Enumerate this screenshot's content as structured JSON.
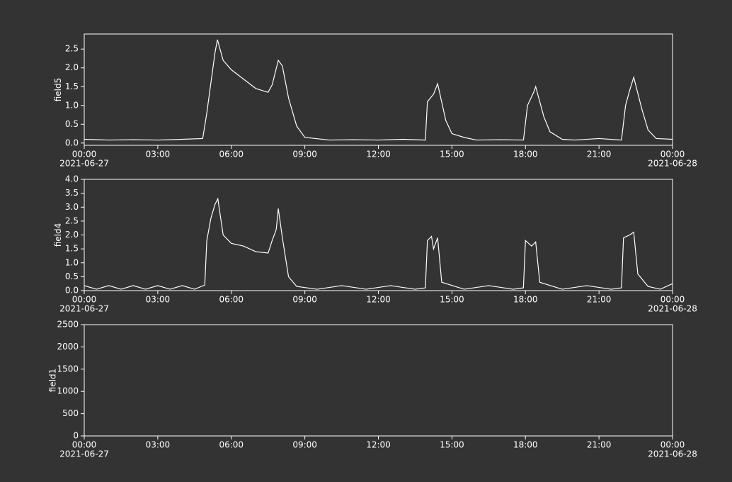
{
  "chart_data": [
    {
      "type": "line",
      "y_label": "field5",
      "x": [
        "2021-06-27 00:00",
        "2021-06-27 01:00",
        "2021-06-27 02:00",
        "2021-06-27 03:00",
        "2021-06-27 04:00",
        "2021-06-27 04:50",
        "2021-06-27 05:00",
        "2021-06-27 05:10",
        "2021-06-27 05:20",
        "2021-06-27 05:26",
        "2021-06-27 05:40",
        "2021-06-27 06:00",
        "2021-06-27 06:30",
        "2021-06-27 07:00",
        "2021-06-27 07:30",
        "2021-06-27 07:40",
        "2021-06-27 07:55",
        "2021-06-27 08:05",
        "2021-06-27 08:20",
        "2021-06-27 08:40",
        "2021-06-27 09:00",
        "2021-06-27 10:00",
        "2021-06-27 11:00",
        "2021-06-27 12:00",
        "2021-06-27 13:00",
        "2021-06-27 13:55",
        "2021-06-27 14:00",
        "2021-06-27 14:15",
        "2021-06-27 14:25",
        "2021-06-27 14:45",
        "2021-06-27 15:00",
        "2021-06-27 15:30",
        "2021-06-27 16:00",
        "2021-06-27 17:00",
        "2021-06-27 17:55",
        "2021-06-27 18:05",
        "2021-06-27 18:20",
        "2021-06-27 18:25",
        "2021-06-27 18:45",
        "2021-06-27 19:00",
        "2021-06-27 19:30",
        "2021-06-27 20:00",
        "2021-06-27 21:00",
        "2021-06-27 21:55",
        "2021-06-27 22:05",
        "2021-06-27 22:15",
        "2021-06-27 22:25",
        "2021-06-27 22:45",
        "2021-06-27 23:00",
        "2021-06-27 23:20",
        "2021-06-28 00:00"
      ],
      "series": [
        {
          "name": "field5",
          "color": "#ffffff",
          "values": [
            0.1,
            0.08,
            0.09,
            0.08,
            0.1,
            0.12,
            0.8,
            1.6,
            2.4,
            2.75,
            2.2,
            1.95,
            1.7,
            1.45,
            1.35,
            1.55,
            2.2,
            2.05,
            1.2,
            0.45,
            0.15,
            0.08,
            0.09,
            0.08,
            0.1,
            0.08,
            1.1,
            1.3,
            1.58,
            0.6,
            0.25,
            0.15,
            0.08,
            0.09,
            0.08,
            1.0,
            1.35,
            1.5,
            0.7,
            0.3,
            0.1,
            0.08,
            0.12,
            0.08,
            1.0,
            1.4,
            1.75,
            0.9,
            0.35,
            0.12,
            0.1
          ]
        }
      ],
      "xlim": [
        "2021-06-27 00:00",
        "2021-06-28 00:00"
      ],
      "xticks": [
        {
          "value": "2021-06-27 00:00",
          "label": "00:00",
          "sublabel": "2021-06-27"
        },
        {
          "value": "2021-06-27 03:00",
          "label": "03:00"
        },
        {
          "value": "2021-06-27 06:00",
          "label": "06:00"
        },
        {
          "value": "2021-06-27 09:00",
          "label": "09:00"
        },
        {
          "value": "2021-06-27 12:00",
          "label": "12:00"
        },
        {
          "value": "2021-06-27 15:00",
          "label": "15:00"
        },
        {
          "value": "2021-06-27 18:00",
          "label": "18:00"
        },
        {
          "value": "2021-06-27 21:00",
          "label": "21:00"
        },
        {
          "value": "2021-06-28 00:00",
          "label": "00:00",
          "sublabel": "2021-06-28"
        }
      ],
      "ylim": [
        -0.06,
        2.9
      ],
      "yticks": [
        {
          "value": 0,
          "label": "0.0"
        },
        0.5,
        {
          "value": 1,
          "label": "1.0"
        },
        1.5,
        {
          "value": 2,
          "label": "2.0"
        },
        2.5
      ]
    },
    {
      "type": "line",
      "y_label": "field4",
      "x": [
        "2021-06-27 00:00",
        "2021-06-27 00:30",
        "2021-06-27 01:00",
        "2021-06-27 01:30",
        "2021-06-27 02:00",
        "2021-06-27 02:30",
        "2021-06-27 03:00",
        "2021-06-27 03:30",
        "2021-06-27 04:00",
        "2021-06-27 04:30",
        "2021-06-27 04:55",
        "2021-06-27 05:00",
        "2021-06-27 05:10",
        "2021-06-27 05:20",
        "2021-06-27 05:27",
        "2021-06-27 05:40",
        "2021-06-27 06:00",
        "2021-06-27 06:30",
        "2021-06-27 07:00",
        "2021-06-27 07:30",
        "2021-06-27 07:40",
        "2021-06-27 07:50",
        "2021-06-27 07:55",
        "2021-06-27 08:05",
        "2021-06-27 08:20",
        "2021-06-27 08:40",
        "2021-06-27 09:30",
        "2021-06-27 10:30",
        "2021-06-27 11:30",
        "2021-06-27 12:30",
        "2021-06-27 13:30",
        "2021-06-27 13:55",
        "2021-06-27 14:00",
        "2021-06-27 14:10",
        "2021-06-27 14:15",
        "2021-06-27 14:25",
        "2021-06-27 14:35",
        "2021-06-27 15:30",
        "2021-06-27 16:30",
        "2021-06-27 17:30",
        "2021-06-27 17:55",
        "2021-06-27 18:00",
        "2021-06-27 18:15",
        "2021-06-27 18:25",
        "2021-06-27 18:35",
        "2021-06-27 19:30",
        "2021-06-27 20:30",
        "2021-06-27 21:30",
        "2021-06-27 21:55",
        "2021-06-27 22:00",
        "2021-06-27 22:15",
        "2021-06-27 22:25",
        "2021-06-27 22:35",
        "2021-06-27 23:00",
        "2021-06-27 23:30",
        "2021-06-28 00:00"
      ],
      "series": [
        {
          "name": "field4",
          "color": "#ffffff",
          "values": [
            0.18,
            0.05,
            0.18,
            0.05,
            0.18,
            0.05,
            0.18,
            0.05,
            0.18,
            0.05,
            0.2,
            1.8,
            2.6,
            3.1,
            3.3,
            2.0,
            1.7,
            1.6,
            1.4,
            1.35,
            1.8,
            2.2,
            2.95,
            1.9,
            0.5,
            0.15,
            0.05,
            0.18,
            0.05,
            0.18,
            0.05,
            0.1,
            1.8,
            1.95,
            1.5,
            1.9,
            0.3,
            0.05,
            0.18,
            0.05,
            0.1,
            1.8,
            1.6,
            1.75,
            0.3,
            0.05,
            0.18,
            0.05,
            0.1,
            1.9,
            2.0,
            2.1,
            0.6,
            0.15,
            0.05,
            0.25
          ]
        }
      ],
      "xlim": [
        "2021-06-27 00:00",
        "2021-06-28 00:00"
      ],
      "xticks": [
        {
          "value": "2021-06-27 00:00",
          "label": "00:00",
          "sublabel": "2021-06-27"
        },
        {
          "value": "2021-06-27 03:00",
          "label": "03:00"
        },
        {
          "value": "2021-06-27 06:00",
          "label": "06:00"
        },
        {
          "value": "2021-06-27 09:00",
          "label": "09:00"
        },
        {
          "value": "2021-06-27 12:00",
          "label": "12:00"
        },
        {
          "value": "2021-06-27 15:00",
          "label": "15:00"
        },
        {
          "value": "2021-06-27 18:00",
          "label": "18:00"
        },
        {
          "value": "2021-06-27 21:00",
          "label": "21:00"
        },
        {
          "value": "2021-06-28 00:00",
          "label": "00:00",
          "sublabel": "2021-06-28"
        }
      ],
      "ylim": [
        0,
        4
      ],
      "yticks": [
        {
          "value": 0,
          "label": "0.0"
        },
        0.5,
        {
          "value": 1,
          "label": "1.0"
        },
        1.5,
        {
          "value": 2,
          "label": "2.0"
        },
        2.5,
        {
          "value": 3,
          "label": "3.0"
        },
        3.5,
        {
          "value": 4,
          "label": "4.0"
        }
      ]
    },
    {
      "type": "line",
      "y_label": "field1",
      "x": [],
      "series": [
        {
          "name": "field1",
          "color": "#ffffff",
          "values": []
        }
      ],
      "xlim": [
        "2021-06-27 00:00",
        "2021-06-28 00:00"
      ],
      "xticks": [
        {
          "value": "2021-06-27 00:00",
          "label": "00:00",
          "sublabel": "2021-06-27"
        },
        {
          "value": "2021-06-27 03:00",
          "label": "03:00"
        },
        {
          "value": "2021-06-27 06:00",
          "label": "06:00"
        },
        {
          "value": "2021-06-27 09:00",
          "label": "09:00"
        },
        {
          "value": "2021-06-27 12:00",
          "label": "12:00"
        },
        {
          "value": "2021-06-27 15:00",
          "label": "15:00"
        },
        {
          "value": "2021-06-27 18:00",
          "label": "18:00"
        },
        {
          "value": "2021-06-27 21:00",
          "label": "21:00"
        },
        {
          "value": "2021-06-28 00:00",
          "label": "00:00",
          "sublabel": "2021-06-28"
        }
      ],
      "ylim": [
        0,
        2500
      ],
      "yticks": [
        0,
        500,
        1000,
        1500,
        2000,
        2500
      ]
    }
  ]
}
